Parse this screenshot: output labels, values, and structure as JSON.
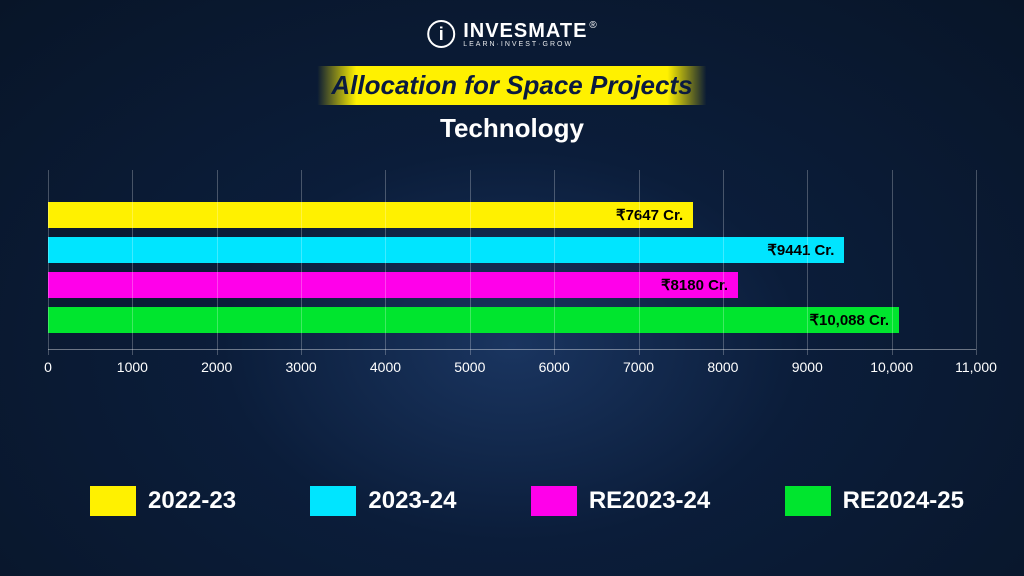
{
  "brand": {
    "mark": "i",
    "name": "INVESMATE",
    "registered": "®",
    "tagline": "LEARN·INVEST·GROW"
  },
  "title": "Allocation for Space Projects",
  "subtitle": "Technology",
  "chart": {
    "type": "bar-horizontal",
    "xmax": 11000,
    "ticks": [
      {
        "v": 0,
        "label": "0"
      },
      {
        "v": 1000,
        "label": "1000"
      },
      {
        "v": 2000,
        "label": "2000"
      },
      {
        "v": 3000,
        "label": "3000"
      },
      {
        "v": 4000,
        "label": "4000"
      },
      {
        "v": 5000,
        "label": "5000"
      },
      {
        "v": 6000,
        "label": "6000"
      },
      {
        "v": 7000,
        "label": "7000"
      },
      {
        "v": 8000,
        "label": "8000"
      },
      {
        "v": 9000,
        "label": "9000"
      },
      {
        "v": 10000,
        "label": "10,000"
      },
      {
        "v": 11000,
        "label": "11,000"
      }
    ],
    "bars": [
      {
        "key": "2022-23",
        "value": 7647,
        "label": "₹7647 Cr.",
        "color": "#fff100"
      },
      {
        "key": "2023-24",
        "value": 9441,
        "label": "₹9441 Cr.",
        "color": "#00e5ff"
      },
      {
        "key": "RE2023-24",
        "value": 8180,
        "label": "₹8180 Cr.",
        "color": "#ff00ea"
      },
      {
        "key": "RE2024-25",
        "value": 10088,
        "label": "₹10,088 Cr.",
        "color": "#00e52e"
      }
    ]
  },
  "legend": [
    {
      "label": "2022-23",
      "color": "#fff100"
    },
    {
      "label": "2023-24",
      "color": "#00e5ff"
    },
    {
      "label": "RE2023-24",
      "color": "#ff00ea"
    },
    {
      "label": "RE2024-25",
      "color": "#00e52e"
    }
  ]
}
